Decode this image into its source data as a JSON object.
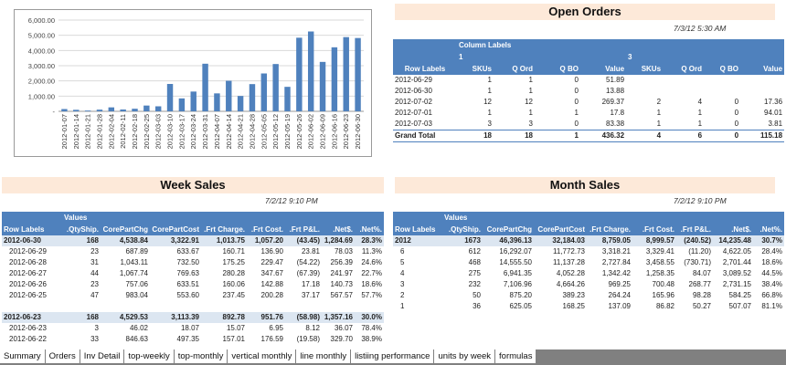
{
  "chart_data": {
    "type": "bar",
    "categories": [
      "2012-01-07",
      "2012-01-14",
      "2012-01-21",
      "2012-01-28",
      "2012-02-04",
      "2012-02-11",
      "2012-02-18",
      "2012-02-25",
      "2012-03-03",
      "2012-03-10",
      "2012-03-17",
      "2012-03-24",
      "2012-03-31",
      "2012-04-07",
      "2012-04-14",
      "2012-04-21",
      "2012-04-28",
      "2012-05-05",
      "2012-05-12",
      "2012-05-19",
      "2012-05-26",
      "2012-06-02",
      "2012-06-09",
      "2012-06-16",
      "2012-06-23",
      "2012-06-30"
    ],
    "values": [
      150,
      100,
      50,
      110,
      260,
      120,
      170,
      380,
      330,
      1800,
      850,
      1300,
      3130,
      1180,
      2010,
      1010,
      1790,
      2490,
      3110,
      1610,
      4840,
      5250,
      3250,
      4210,
      4880,
      4820
    ],
    "yticks": [
      "-",
      "1,000.00",
      "2,000.00",
      "3,000.00",
      "4,000.00",
      "5,000.00",
      "6,000.00"
    ],
    "ylim": [
      0,
      6000
    ],
    "grid": true,
    "color": "#4f81bd"
  },
  "open_orders": {
    "title": "Open Orders",
    "timestamp": "7/3/12 5:30 AM",
    "header_rows": [
      [
        "",
        "Column Labels",
        "",
        "",
        "",
        "",
        "",
        "",
        ""
      ],
      [
        "",
        "1",
        "",
        "",
        "",
        "3",
        "",
        "",
        ""
      ],
      [
        "Row Labels",
        "SKUs",
        "Q Ord",
        "Q BO",
        "Value",
        "SKUs",
        "Q Ord",
        "Q BO",
        "Value"
      ]
    ],
    "rows": [
      [
        "2012-06-29",
        "1",
        "1",
        "0",
        "51.89",
        "",
        "",
        "",
        ""
      ],
      [
        "2012-06-30",
        "1",
        "1",
        "0",
        "13.88",
        "",
        "",
        "",
        ""
      ],
      [
        "2012-07-02",
        "12",
        "12",
        "0",
        "269.37",
        "2",
        "4",
        "0",
        "17.36"
      ],
      [
        "2012-07-01",
        "1",
        "1",
        "1",
        "17.8",
        "1",
        "1",
        "0",
        "94.01"
      ],
      [
        "2012-07-03",
        "3",
        "3",
        "0",
        "83.38",
        "1",
        "1",
        "0",
        "3.81"
      ]
    ],
    "total": [
      "Grand Total",
      "18",
      "18",
      "1",
      "436.32",
      "4",
      "6",
      "0",
      "115.18"
    ]
  },
  "week_sales": {
    "title": "Week Sales",
    "timestamp": "7/2/12 9:10 PM",
    "header_rows": [
      [
        "",
        "Values",
        "",
        "",
        "",
        "",
        "",
        "",
        ""
      ],
      [
        "Row Labels",
        ".QtyShip.",
        "CorePartChg",
        "CorePartCost",
        ".Frt Charge.",
        ".Frt Cost.",
        ".Frt P&L.",
        ".Net$.",
        ".Net%."
      ]
    ],
    "rows": [
      {
        "type": "group",
        "cells": [
          "2012-06-30",
          "168",
          "4,538.84",
          "3,322.91",
          "1,013.75",
          "1,057.20",
          "(43.45)",
          "1,284.69",
          "28.3%"
        ]
      },
      {
        "type": "sub",
        "cells": [
          "2012-06-29",
          "23",
          "687.89",
          "633.67",
          "160.71",
          "136.90",
          "23.81",
          "78.03",
          "11.3%"
        ]
      },
      {
        "type": "sub",
        "cells": [
          "2012-06-28",
          "31",
          "1,043.11",
          "732.50",
          "175.25",
          "229.47",
          "(54.22)",
          "256.39",
          "24.6%"
        ]
      },
      {
        "type": "sub",
        "cells": [
          "2012-06-27",
          "44",
          "1,067.74",
          "769.63",
          "280.28",
          "347.67",
          "(67.39)",
          "241.97",
          "22.7%"
        ]
      },
      {
        "type": "sub",
        "cells": [
          "2012-06-26",
          "23",
          "757.06",
          "633.51",
          "160.06",
          "142.88",
          "17.18",
          "140.73",
          "18.6%"
        ]
      },
      {
        "type": "sub",
        "cells": [
          "2012-06-25",
          "47",
          "983.04",
          "553.60",
          "237.45",
          "200.28",
          "37.17",
          "567.57",
          "57.7%"
        ]
      },
      {
        "type": "blank",
        "cells": [
          "",
          "",
          "",
          "",
          "",
          "",
          "",
          "",
          ""
        ]
      },
      {
        "type": "group",
        "cells": [
          "2012-06-23",
          "168",
          "4,529.53",
          "3,113.39",
          "892.78",
          "951.76",
          "(58.98)",
          "1,357.16",
          "30.0%"
        ]
      },
      {
        "type": "sub",
        "cells": [
          "2012-06-23",
          "3",
          "46.02",
          "18.07",
          "15.07",
          "6.95",
          "8.12",
          "36.07",
          "78.4%"
        ]
      },
      {
        "type": "sub",
        "cells": [
          "2012-06-22",
          "33",
          "846.63",
          "497.35",
          "157.01",
          "176.59",
          "(19.58)",
          "329.70",
          "38.9%"
        ]
      }
    ]
  },
  "month_sales": {
    "title": "Month Sales",
    "timestamp": "7/2/12 9:10 PM",
    "header_rows": [
      [
        "",
        "Values",
        "",
        "",
        "",
        "",
        "",
        "",
        ""
      ],
      [
        "Row Labels",
        ".QtyShip.",
        "CorePartChg",
        "CorePartCost",
        ".Frt Charge.",
        ".Frt Cost.",
        ".Frt P&L.",
        ".Net$.",
        ".Net%."
      ]
    ],
    "rows": [
      {
        "type": "group",
        "cells": [
          "2012",
          "1673",
          "46,396.13",
          "32,184.03",
          "8,759.05",
          "8,999.57",
          "(240.52)",
          "14,235.48",
          "30.7%"
        ]
      },
      {
        "type": "sub",
        "cells": [
          "6",
          "612",
          "16,292.07",
          "11,772.73",
          "3,318.21",
          "3,329.41",
          "(11.20)",
          "4,622.05",
          "28.4%"
        ]
      },
      {
        "type": "sub",
        "cells": [
          "5",
          "468",
          "14,555.50",
          "11,137.28",
          "2,727.84",
          "3,458.55",
          "(730.71)",
          "2,701.44",
          "18.6%"
        ]
      },
      {
        "type": "sub",
        "cells": [
          "4",
          "275",
          "6,941.35",
          "4,052.28",
          "1,342.42",
          "1,258.35",
          "84.07",
          "3,089.52",
          "44.5%"
        ]
      },
      {
        "type": "sub",
        "cells": [
          "3",
          "232",
          "7,106.96",
          "4,664.26",
          "969.25",
          "700.48",
          "268.77",
          "2,731.15",
          "38.4%"
        ]
      },
      {
        "type": "sub",
        "cells": [
          "2",
          "50",
          "875.20",
          "389.23",
          "264.24",
          "165.96",
          "98.28",
          "584.25",
          "66.8%"
        ]
      },
      {
        "type": "sub",
        "cells": [
          "1",
          "36",
          "625.05",
          "168.25",
          "137.09",
          "86.82",
          "50.27",
          "507.07",
          "81.1%"
        ]
      }
    ]
  },
  "sheet_tabs": [
    "Summary",
    "Orders",
    "Inv Detail",
    "top-weekly",
    "top-monthly",
    "vertical monthly",
    "line monthly",
    "listiing performance",
    "units by week",
    "formulas"
  ]
}
